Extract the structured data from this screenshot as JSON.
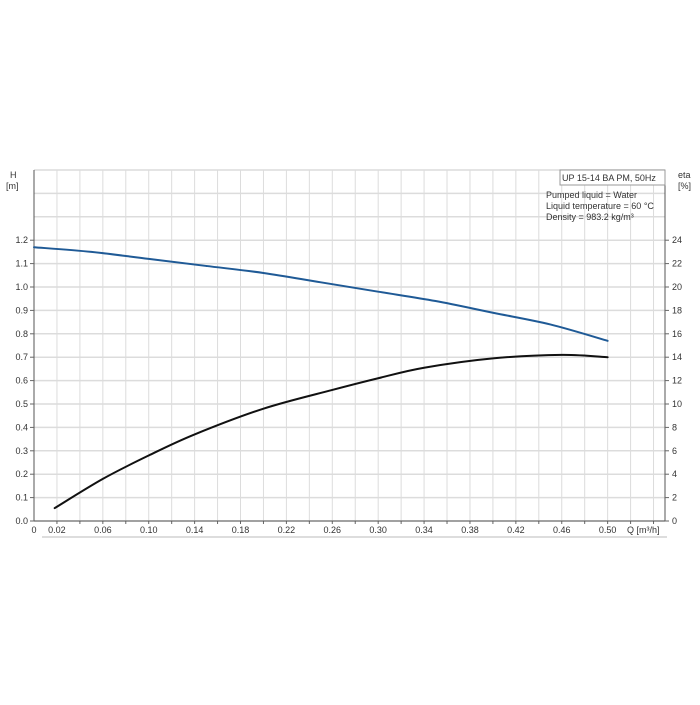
{
  "chart_data": {
    "type": "line",
    "title": "UP 15-14 BA PM, 50Hz",
    "annotations": [
      "Pumped liquid = Water",
      "Liquid temperature = 60 °C",
      "Density = 983.2 kg/m³"
    ],
    "xlabel": "Q [m³/h]",
    "ylabel_left": {
      "name": "H",
      "unit": "[m]"
    },
    "ylabel_right": {
      "name": "eta",
      "unit": "[%]"
    },
    "xlim": [
      0,
      0.55
    ],
    "ylim_left": [
      0,
      1.5
    ],
    "ylim_right": [
      0,
      30
    ],
    "x_ticks": [
      "0",
      "0.02",
      "0.06",
      "0.10",
      "0.14",
      "0.18",
      "0.22",
      "0.26",
      "0.30",
      "0.34",
      "0.38",
      "0.42",
      "0.46",
      "0.50"
    ],
    "y_left_ticks": [
      "0.0",
      "0.1",
      "0.2",
      "0.3",
      "0.4",
      "0.5",
      "0.6",
      "0.7",
      "0.8",
      "0.9",
      "1.0",
      "1.1",
      "1.2"
    ],
    "y_right_ticks": [
      "0",
      "2",
      "4",
      "6",
      "8",
      "10",
      "12",
      "14",
      "16",
      "18",
      "20",
      "22",
      "24"
    ],
    "grid": true,
    "legend": "top-right",
    "series": [
      {
        "name": "H",
        "axis": "left",
        "color": "#1f5a96",
        "x": [
          0,
          0.05,
          0.1,
          0.15,
          0.2,
          0.25,
          0.3,
          0.35,
          0.4,
          0.45,
          0.5
        ],
        "y": [
          1.17,
          1.15,
          1.12,
          1.09,
          1.06,
          1.02,
          0.98,
          0.94,
          0.89,
          0.84,
          0.77
        ]
      },
      {
        "name": "eta",
        "axis": "right",
        "color": "#111111",
        "x": [
          0.018,
          0.06,
          0.1,
          0.14,
          0.2,
          0.26,
          0.3,
          0.34,
          0.4,
          0.46,
          0.5
        ],
        "y": [
          1.1,
          3.6,
          5.6,
          7.4,
          9.6,
          11.2,
          12.2,
          13.1,
          13.9,
          14.2,
          14.0
        ]
      }
    ]
  }
}
